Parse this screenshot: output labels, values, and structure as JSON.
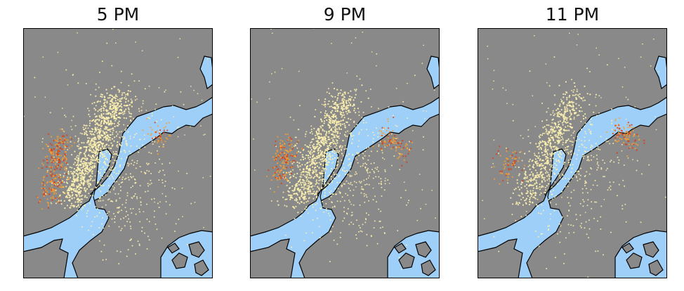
{
  "panels": [
    {
      "title": "5 PM",
      "hotspots": [
        [
          0.18,
          0.52,
          0.9
        ],
        [
          0.16,
          0.6,
          0.8
        ],
        [
          0.2,
          0.46,
          0.7
        ],
        [
          0.14,
          0.66,
          0.6
        ],
        [
          0.72,
          0.42,
          0.5
        ]
      ]
    },
    {
      "title": "9 PM",
      "hotspots": [
        [
          0.18,
          0.52,
          0.7
        ],
        [
          0.16,
          0.58,
          0.6
        ],
        [
          0.2,
          0.47,
          0.5
        ],
        [
          0.74,
          0.44,
          0.6
        ],
        [
          0.8,
          0.48,
          0.4
        ]
      ]
    },
    {
      "title": "11 PM",
      "hotspots": [
        [
          0.17,
          0.53,
          0.4
        ],
        [
          0.15,
          0.58,
          0.3
        ],
        [
          0.76,
          0.42,
          0.6
        ],
        [
          0.8,
          0.44,
          0.5
        ]
      ]
    }
  ],
  "colors": {
    "land": "#898989",
    "water": "#9ecff8",
    "coast": "#000000",
    "point_low": "#fff3b0",
    "point_mid": "#f8a030",
    "point_high": "#e03a10"
  }
}
